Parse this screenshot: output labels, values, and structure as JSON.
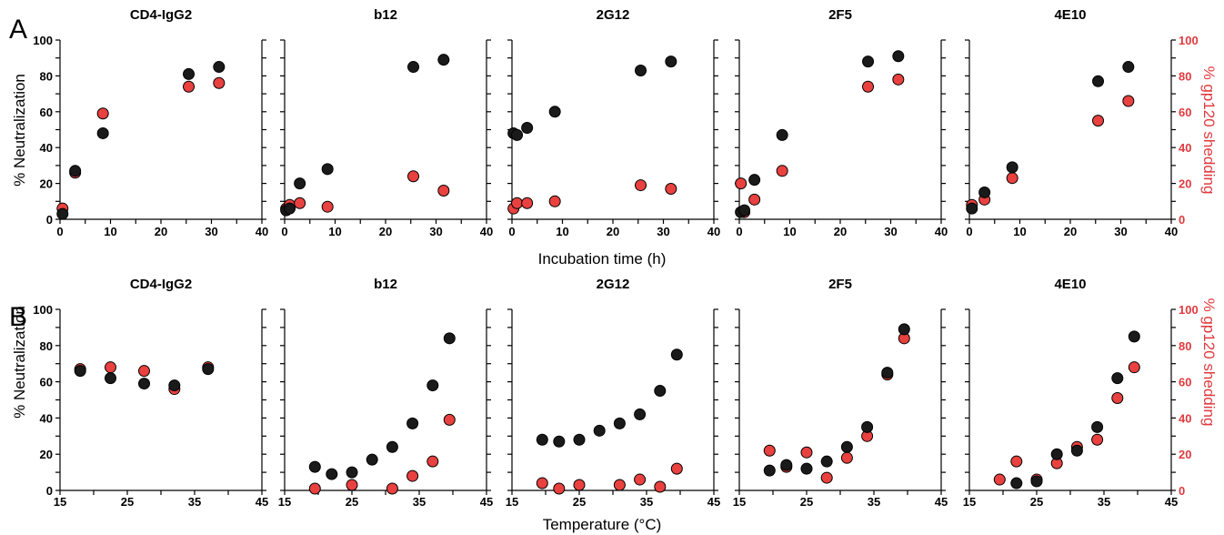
{
  "row_labels": [
    "A",
    "B"
  ],
  "left_axis_title": "% Neutralization",
  "right_axis_title": "% gp120 shedding",
  "x_axis_titles": [
    "Incubation time (h)",
    "Temperature (°C)"
  ],
  "panel_titles": [
    [
      "CD4-IgG2",
      "b12",
      "2G12",
      "2F5",
      "4E10"
    ],
    [
      "CD4-IgG2",
      "b12",
      "2G12",
      "2F5",
      "4E10"
    ]
  ],
  "x_ticks": [
    [
      "0",
      "10",
      "20",
      "30",
      "40"
    ],
    [
      "15",
      "25",
      "35",
      "45"
    ]
  ],
  "y_ticks": [
    "0",
    "20",
    "40",
    "60",
    "80",
    "100"
  ],
  "colors": {
    "neutralization": "#1a1a1a",
    "gp120_shedding": "#e8413f",
    "right_axis_text": "#e03a3e"
  },
  "chart_data": [
    {
      "type": "scatter",
      "row": "A",
      "title": "CD4-IgG2",
      "xlim": [
        0,
        40
      ],
      "ylim": [
        0,
        100
      ],
      "series": [
        {
          "name": "",
          "color": "#1a1a1a",
          "points": [
            [
              0.5,
              3
            ],
            [
              3,
              27
            ],
            [
              8.5,
              48
            ],
            [
              25.5,
              81
            ],
            [
              31.5,
              85
            ]
          ]
        },
        {
          "name": "",
          "color": "#e8413f",
          "points": [
            [
              0.5,
              6
            ],
            [
              3,
              26
            ],
            [
              8.5,
              59
            ],
            [
              25.5,
              74
            ],
            [
              31.5,
              76
            ]
          ]
        }
      ]
    },
    {
      "type": "scatter",
      "row": "A",
      "title": "b12",
      "xlim": [
        0,
        40
      ],
      "ylim": [
        0,
        100
      ],
      "series": [
        {
          "name": "",
          "color": "#1a1a1a",
          "points": [
            [
              0.3,
              5
            ],
            [
              1,
              6
            ],
            [
              3,
              20
            ],
            [
              8.5,
              28
            ],
            [
              25.5,
              85
            ],
            [
              31.5,
              89
            ]
          ]
        },
        {
          "name": "",
          "color": "#e8413f",
          "points": [
            [
              0.3,
              6
            ],
            [
              1,
              8
            ],
            [
              3,
              9
            ],
            [
              8.5,
              7
            ],
            [
              25.5,
              24
            ],
            [
              31.5,
              16
            ]
          ]
        }
      ]
    },
    {
      "type": "scatter",
      "row": "A",
      "title": "2G12",
      "xlim": [
        0,
        40
      ],
      "ylim": [
        0,
        100
      ],
      "series": [
        {
          "name": "",
          "color": "#1a1a1a",
          "points": [
            [
              0.3,
              48
            ],
            [
              1,
              47
            ],
            [
              3,
              51
            ],
            [
              8.5,
              60
            ],
            [
              25.5,
              83
            ],
            [
              31.5,
              88
            ]
          ]
        },
        {
          "name": "",
          "color": "#e8413f",
          "points": [
            [
              0.3,
              6
            ],
            [
              1,
              9
            ],
            [
              3,
              9
            ],
            [
              8.5,
              10
            ],
            [
              25.5,
              19
            ],
            [
              31.5,
              17
            ]
          ]
        }
      ]
    },
    {
      "type": "scatter",
      "row": "A",
      "title": "2F5",
      "xlim": [
        0,
        40
      ],
      "ylim": [
        0,
        100
      ],
      "series": [
        {
          "name": "",
          "color": "#1a1a1a",
          "points": [
            [
              0.3,
              4
            ],
            [
              1,
              5
            ],
            [
              3,
              22
            ],
            [
              8.5,
              47
            ],
            [
              25.5,
              88
            ],
            [
              31.5,
              91
            ]
          ]
        },
        {
          "name": "",
          "color": "#e8413f",
          "points": [
            [
              0.3,
              20
            ],
            [
              1,
              4
            ],
            [
              3,
              11
            ],
            [
              8.5,
              27
            ],
            [
              25.5,
              74
            ],
            [
              31.5,
              78
            ]
          ]
        }
      ]
    },
    {
      "type": "scatter",
      "row": "A",
      "title": "4E10",
      "xlim": [
        0,
        40
      ],
      "ylim": [
        0,
        100
      ],
      "series": [
        {
          "name": "",
          "color": "#1a1a1a",
          "points": [
            [
              0.5,
              6
            ],
            [
              3,
              15
            ],
            [
              8.5,
              29
            ],
            [
              25.5,
              77
            ],
            [
              31.5,
              85
            ]
          ]
        },
        {
          "name": "",
          "color": "#e8413f",
          "points": [
            [
              0.5,
              8
            ],
            [
              3,
              11
            ],
            [
              8.5,
              23
            ],
            [
              25.5,
              55
            ],
            [
              31.5,
              66
            ]
          ]
        }
      ]
    },
    {
      "type": "scatter",
      "row": "B",
      "title": "CD4-IgG2",
      "xlim": [
        15,
        45
      ],
      "ylim": [
        0,
        100
      ],
      "series": [
        {
          "name": "",
          "color": "#1a1a1a",
          "points": [
            [
              18,
              66
            ],
            [
              22.5,
              62
            ],
            [
              27.5,
              59
            ],
            [
              32,
              58
            ],
            [
              37,
              67
            ]
          ]
        },
        {
          "name": "",
          "color": "#e8413f",
          "points": [
            [
              18,
              67
            ],
            [
              22.5,
              68
            ],
            [
              27.5,
              66
            ],
            [
              32,
              56
            ],
            [
              37,
              68
            ]
          ]
        }
      ]
    },
    {
      "type": "scatter",
      "row": "B",
      "title": "b12",
      "xlim": [
        15,
        45
      ],
      "ylim": [
        0,
        100
      ],
      "series": [
        {
          "name": "",
          "color": "#1a1a1a",
          "points": [
            [
              19.5,
              13
            ],
            [
              22,
              9
            ],
            [
              25,
              10
            ],
            [
              28,
              17
            ],
            [
              31,
              24
            ],
            [
              34,
              37
            ],
            [
              37,
              58
            ],
            [
              39.5,
              84
            ]
          ]
        },
        {
          "name": "",
          "color": "#e8413f",
          "points": [
            [
              19.5,
              1
            ],
            [
              25,
              3
            ],
            [
              31,
              1
            ],
            [
              34,
              8
            ],
            [
              37,
              16
            ],
            [
              39.5,
              39
            ]
          ]
        }
      ]
    },
    {
      "type": "scatter",
      "row": "B",
      "title": "2G12",
      "xlim": [
        15,
        45
      ],
      "ylim": [
        0,
        100
      ],
      "series": [
        {
          "name": "",
          "color": "#1a1a1a",
          "points": [
            [
              19.5,
              28
            ],
            [
              22,
              27
            ],
            [
              25,
              28
            ],
            [
              28,
              33
            ],
            [
              31,
              37
            ],
            [
              34,
              42
            ],
            [
              37,
              55
            ],
            [
              39.5,
              75
            ]
          ]
        },
        {
          "name": "",
          "color": "#e8413f",
          "points": [
            [
              19.5,
              4
            ],
            [
              22,
              1
            ],
            [
              25,
              3
            ],
            [
              31,
              3
            ],
            [
              34,
              6
            ],
            [
              37,
              2
            ],
            [
              39.5,
              12
            ]
          ]
        }
      ]
    },
    {
      "type": "scatter",
      "row": "B",
      "title": "2F5",
      "xlim": [
        15,
        45
      ],
      "ylim": [
        0,
        100
      ],
      "series": [
        {
          "name": "",
          "color": "#1a1a1a",
          "points": [
            [
              19.5,
              11
            ],
            [
              22,
              14
            ],
            [
              25,
              12
            ],
            [
              28,
              16
            ],
            [
              31,
              24
            ],
            [
              34,
              35
            ],
            [
              37,
              65
            ],
            [
              39.5,
              89
            ]
          ]
        },
        {
          "name": "",
          "color": "#e8413f",
          "points": [
            [
              19.5,
              22
            ],
            [
              22,
              13
            ],
            [
              25,
              21
            ],
            [
              28,
              7
            ],
            [
              31,
              18
            ],
            [
              34,
              30
            ],
            [
              37,
              64
            ],
            [
              39.5,
              84
            ]
          ]
        }
      ]
    },
    {
      "type": "scatter",
      "row": "B",
      "title": "4E10",
      "xlim": [
        15,
        45
      ],
      "ylim": [
        0,
        100
      ],
      "series": [
        {
          "name": "",
          "color": "#1a1a1a",
          "points": [
            [
              22,
              4
            ],
            [
              25,
              5
            ],
            [
              28,
              20
            ],
            [
              31,
              22
            ],
            [
              34,
              35
            ],
            [
              37,
              62
            ],
            [
              39.5,
              85
            ]
          ]
        },
        {
          "name": "",
          "color": "#e8413f",
          "points": [
            [
              19.5,
              6
            ],
            [
              22,
              16
            ],
            [
              25,
              6
            ],
            [
              28,
              15
            ],
            [
              31,
              24
            ],
            [
              34,
              28
            ],
            [
              37,
              51
            ],
            [
              39.5,
              68
            ]
          ]
        }
      ]
    }
  ]
}
